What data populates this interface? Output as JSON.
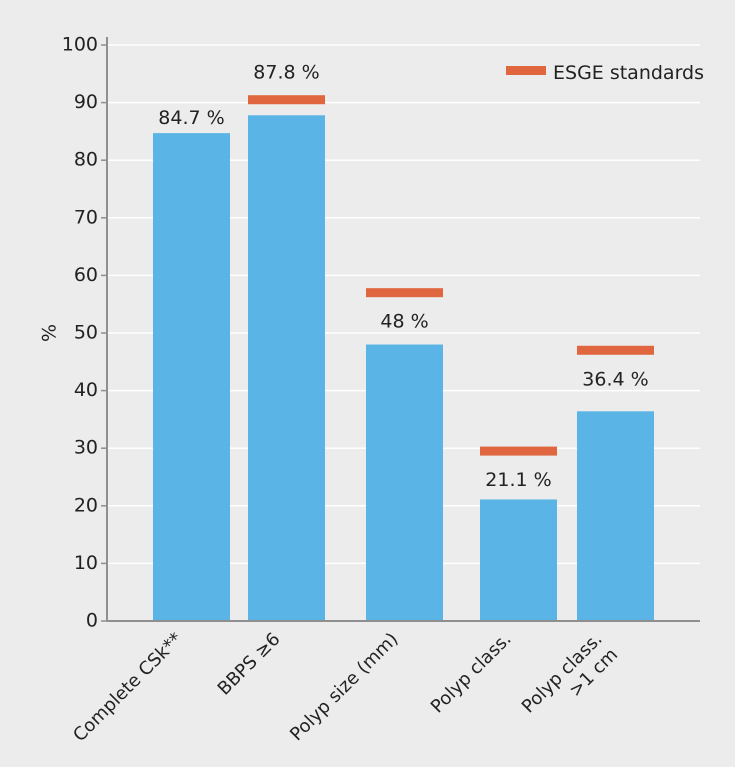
{
  "chart_data": {
    "type": "bar",
    "ylabel": "%",
    "xlabel": "",
    "ylim": [
      0,
      100
    ],
    "yticks": [
      0,
      10,
      20,
      30,
      40,
      50,
      60,
      70,
      80,
      90,
      100
    ],
    "grid": true,
    "legend": {
      "position": "top-right",
      "label": "ESGE standards"
    },
    "categories": [
      {
        "lines": [
          "Complete CSk**"
        ]
      },
      {
        "lines": [
          "BBPS ≥6"
        ]
      },
      {
        "lines": [
          "Polyp size (mm)"
        ]
      },
      {
        "lines": [
          "Polyp class."
        ]
      },
      {
        "lines": [
          "Polyp class.",
          ">1 cm"
        ]
      }
    ],
    "values": [
      84.7,
      87.8,
      48,
      21.1,
      36.4
    ],
    "value_labels": [
      "84.7 %",
      "87.8 %",
      "48 %",
      "21.1 %",
      "36.4 %"
    ],
    "standards": [
      null,
      90.5,
      57,
      29.5,
      47
    ],
    "colors": {
      "bar": "#5ab4e5",
      "standard": "#e0663f",
      "grid": "#ffffff",
      "axis": "#8f8f8f",
      "background": "#ebeceb"
    }
  }
}
